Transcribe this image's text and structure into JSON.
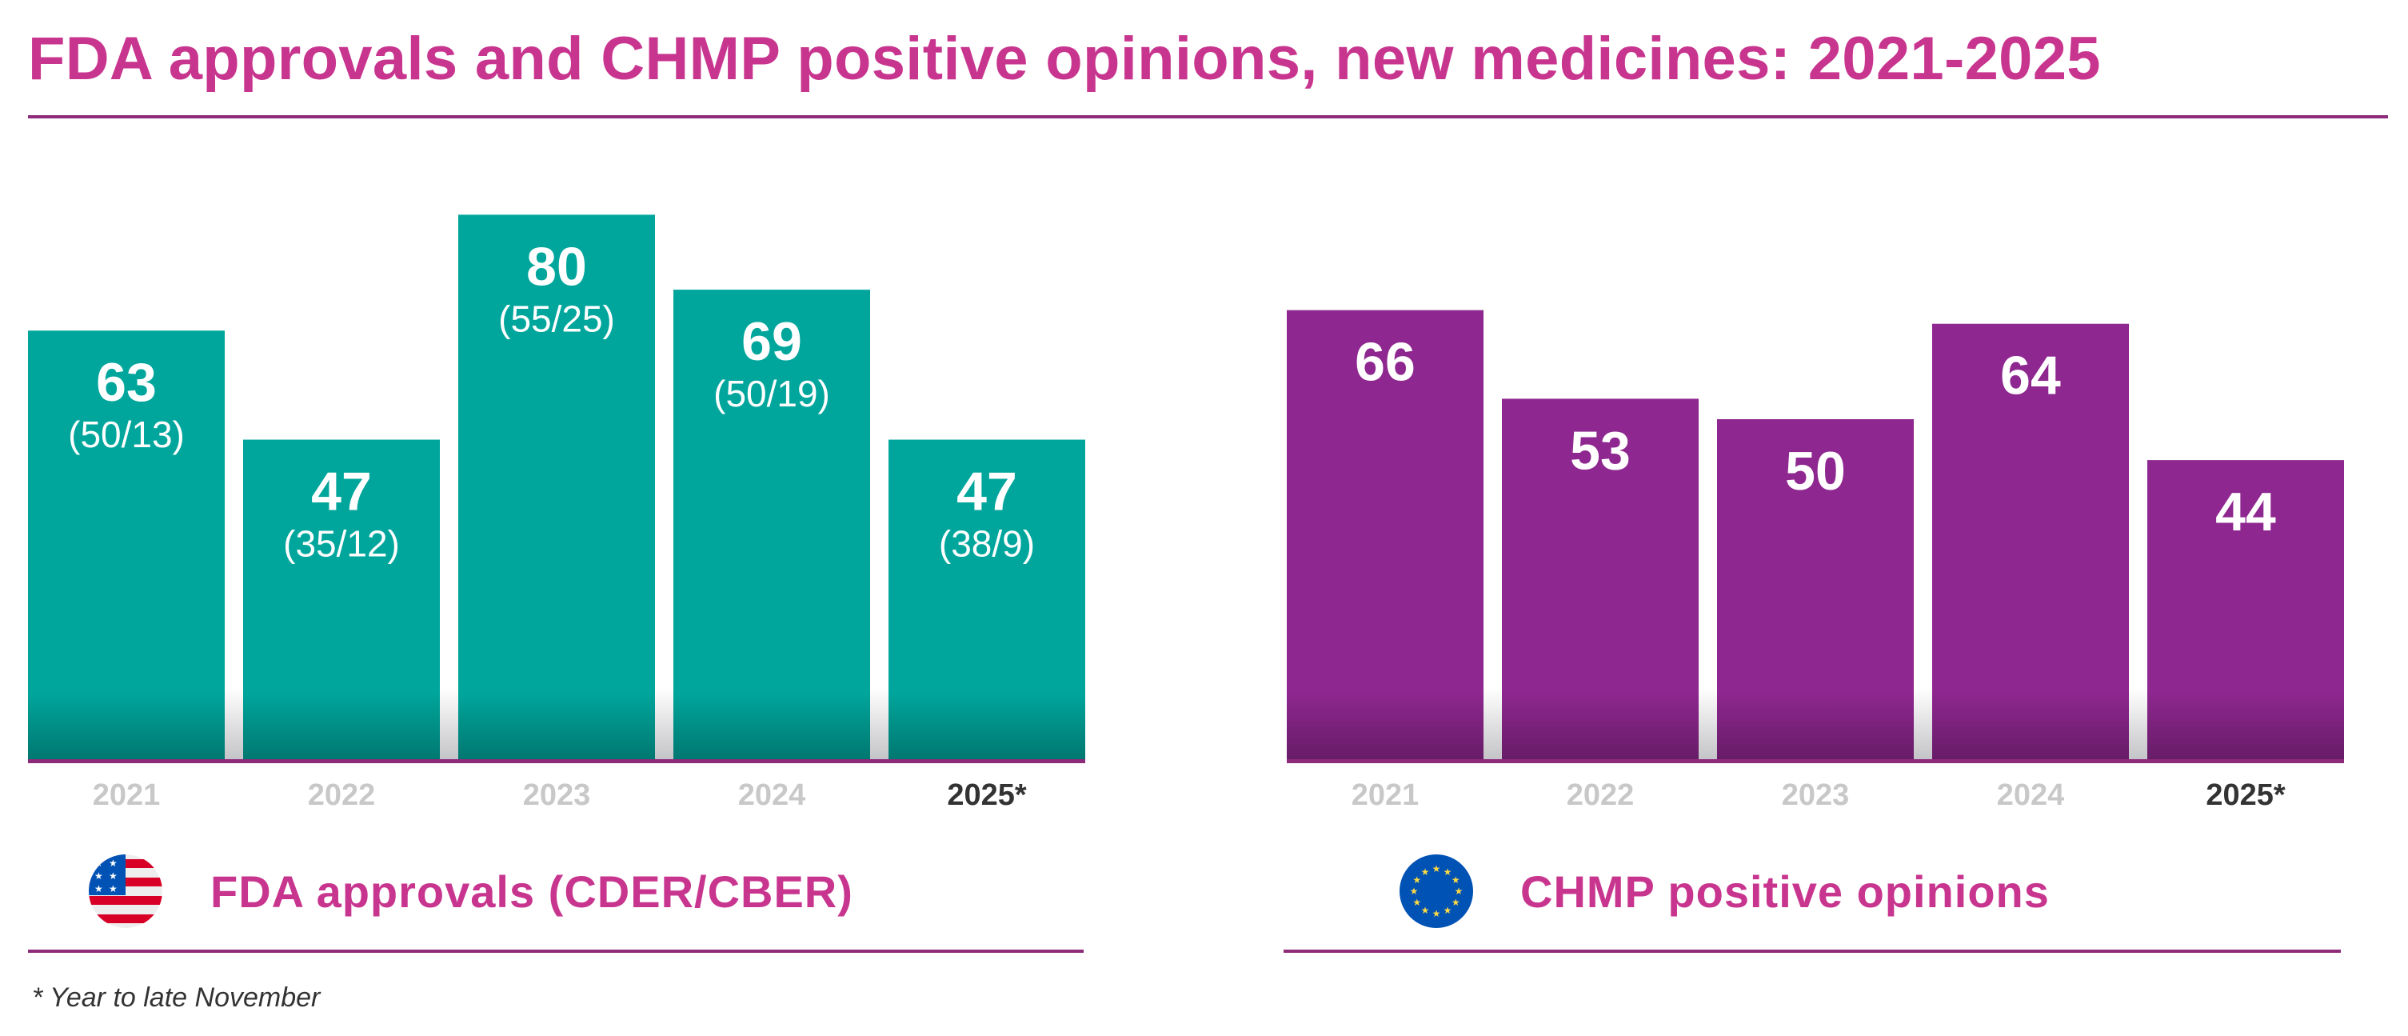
{
  "title": "FDA approvals and CHMP positive opinions, new medicines: 2021-2025",
  "footnote": "* Year to late November",
  "colors": {
    "title": "#c8358f",
    "fda_bar": "#00a69c",
    "chmp_bar": "#8e278f",
    "rule": "#8e2a7a",
    "year_label": "#c8c8c8",
    "year_label_current": "#333333"
  },
  "chart_data": [
    {
      "type": "bar",
      "legend": "FDA approvals (CDER/CBER)",
      "legend_icon": "us-flag-icon",
      "categories": [
        "2021",
        "2022",
        "2023",
        "2024",
        "2025*"
      ],
      "values": [
        63,
        47,
        80,
        69,
        47
      ],
      "breakdown_labels": [
        "(50/13)",
        "(35/12)",
        "(55/25)",
        "(50/19)",
        "(38/9)"
      ],
      "breakdown": [
        [
          50,
          13
        ],
        [
          35,
          12
        ],
        [
          55,
          25
        ],
        [
          50,
          19
        ],
        [
          38,
          9
        ]
      ],
      "ylim": [
        0,
        80
      ],
      "grid": false
    },
    {
      "type": "bar",
      "legend": "CHMP positive opinions",
      "legend_icon": "eu-flag-icon",
      "categories": [
        "2021",
        "2022",
        "2023",
        "2024",
        "2025*"
      ],
      "values": [
        66,
        53,
        50,
        64,
        44
      ],
      "ylim": [
        0,
        80
      ],
      "grid": false
    }
  ]
}
